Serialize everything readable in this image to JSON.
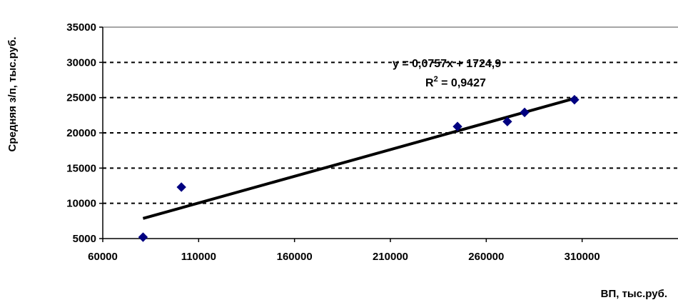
{
  "chart_data": {
    "type": "scatter",
    "title": "",
    "xlabel": "ВП, тыс.руб.",
    "ylabel": "Средняя з/п,  тыс.руб.",
    "xlim": [
      60000,
      360000
    ],
    "ylim": [
      5000,
      35000
    ],
    "x_ticks": [
      60000,
      110000,
      160000,
      210000,
      260000,
      310000
    ],
    "x_tick_labels": [
      "60000",
      "110000",
      "160000",
      "210000",
      "260000",
      "310000"
    ],
    "y_ticks": [
      5000,
      10000,
      15000,
      20000,
      25000,
      30000,
      35000
    ],
    "y_tick_labels": [
      "5000",
      "10000",
      "15000",
      "20000",
      "25000",
      "30000",
      "35000"
    ],
    "grid": "horizontal dashed",
    "series": [
      {
        "marker": "diamond",
        "color": "#000080",
        "x": [
          81000,
          101000,
          245000,
          271000,
          280000,
          306000
        ],
        "y": [
          5200,
          12300,
          20900,
          21600,
          22900,
          24700
        ]
      }
    ],
    "trendline": {
      "type": "linear",
      "slope": 0.0757,
      "intercept": 1724.9,
      "x_range": [
        81000,
        306000
      ],
      "color": "#000000"
    },
    "annotations": {
      "equation": "y = 0,0757x + 1724,9",
      "r2_prefix": "R",
      "r2_sup": "2",
      "r2_suffix": " = 0,9427"
    }
  }
}
